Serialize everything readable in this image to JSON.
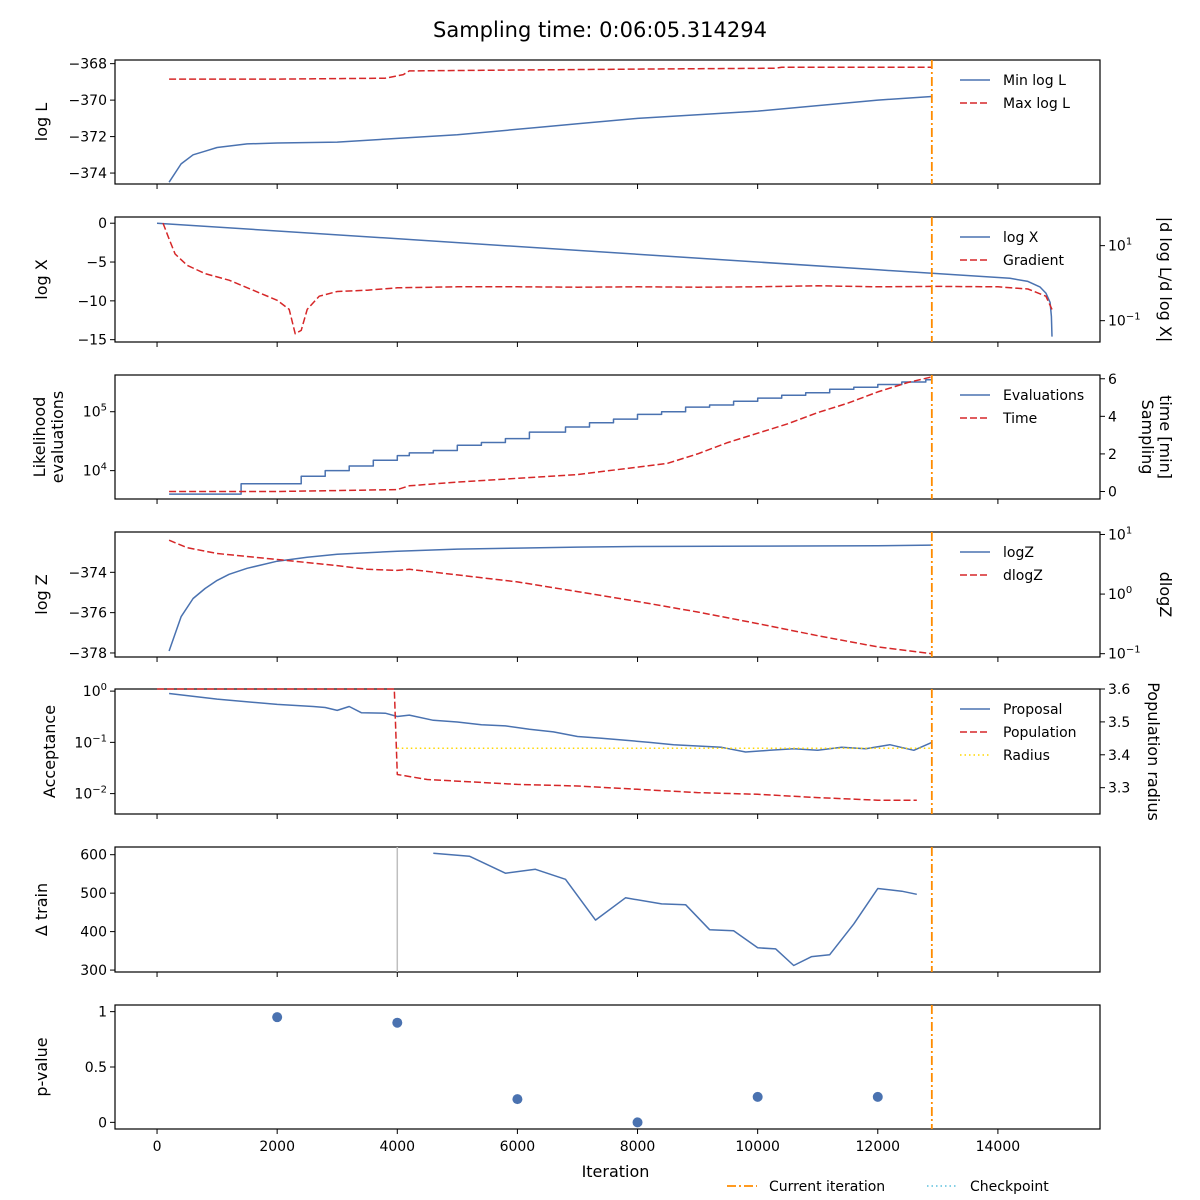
{
  "figure": {
    "suptitle": "Sampling time: 0:06:05.314294"
  },
  "colors": {
    "blue": "#4a72b0",
    "red": "#d62728",
    "orange": "#ff8c00",
    "yellow": "#ffd700",
    "cyan": "#5bc0de",
    "grey": "#bfbfbf"
  },
  "legend_bottom": [
    "Current iteration",
    "Checkpoint"
  ],
  "chart_data": [
    {
      "type": "line",
      "id": "logL",
      "ylabel": "log L",
      "ylim": [
        -374.6,
        -367.8
      ],
      "yticks": [
        -374,
        -372,
        -370,
        -368
      ],
      "current_iteration": 12900,
      "series": [
        {
          "name": "Min log L",
          "style": "solid",
          "color": "blue",
          "x": [
            200,
            400,
            600,
            800,
            1000,
            1500,
            2000,
            3000,
            4000,
            5000,
            6000,
            7000,
            8000,
            9000,
            10000,
            11000,
            12000,
            12900
          ],
          "y": [
            -374.5,
            -373.5,
            -373.0,
            -372.8,
            -372.6,
            -372.4,
            -372.35,
            -372.3,
            -372.1,
            -371.9,
            -371.6,
            -371.3,
            -371.0,
            -370.8,
            -370.6,
            -370.3,
            -370.0,
            -369.8
          ]
        },
        {
          "name": "Max log L",
          "style": "dashed",
          "color": "red",
          "x": [
            200,
            2000,
            3800,
            4100,
            4200,
            6000,
            8000,
            10300,
            10400,
            12900
          ],
          "y": [
            -368.85,
            -368.85,
            -368.8,
            -368.6,
            -368.4,
            -368.35,
            -368.3,
            -368.25,
            -368.2,
            -368.2
          ]
        }
      ],
      "legend": "upper right"
    },
    {
      "type": "line",
      "id": "logX",
      "ylabel": "log X",
      "ylim": [
        -15.3,
        0.8
      ],
      "yticks": [
        0,
        -5,
        -10,
        -15
      ],
      "y2label": "|d log L/d log X|",
      "y2log": true,
      "y2lim": [
        0.027,
        58
      ],
      "y2ticks": [
        "10^1",
        "10^-1"
      ],
      "current_iteration": 12900,
      "series": [
        {
          "name": "log X",
          "style": "solid",
          "color": "blue",
          "x": [
            0,
            12000,
            14200,
            14500,
            14700,
            14800,
            14870,
            14890,
            14900
          ],
          "y": [
            0.0,
            -6.0,
            -7.1,
            -7.5,
            -8.2,
            -9.0,
            -10.2,
            -12.0,
            -14.6
          ]
        },
        {
          "name": "Gradient",
          "style": "dashed",
          "color": "red",
          "axis": "right",
          "x": [
            100,
            200,
            300,
            500,
            800,
            1200,
            1600,
            2000,
            2200,
            2300,
            2400,
            2500,
            2700,
            3000,
            3500,
            4000,
            5000,
            6000,
            7000,
            8000,
            9000,
            10000,
            11000,
            12000,
            13000,
            14000,
            14500,
            14800,
            14900
          ],
          "y": [
            40,
            15,
            6.0,
            3.0,
            1.8,
            1.2,
            0.65,
            0.35,
            0.2,
            0.045,
            0.055,
            0.2,
            0.45,
            0.6,
            0.65,
            0.75,
            0.8,
            0.8,
            0.78,
            0.8,
            0.78,
            0.8,
            0.85,
            0.8,
            0.82,
            0.8,
            0.7,
            0.45,
            0.2
          ]
        }
      ],
      "legend": "upper right"
    },
    {
      "type": "line",
      "id": "evals",
      "ylabel": "Likelihood evaluations",
      "ylog": true,
      "ylim": [
        3300,
        420000
      ],
      "yticks": [
        "10^4",
        "10^5"
      ],
      "y2label": "Sampling time [min]",
      "y2lim": [
        -0.4,
        6.2
      ],
      "y2ticks": [
        0,
        2,
        4,
        6
      ],
      "current_iteration": 12900,
      "series": [
        {
          "name": "Evaluations",
          "style": "solid",
          "color": "blue",
          "step": true,
          "x": [
            200,
            1200,
            1400,
            2200,
            2400,
            2800,
            3200,
            3600,
            4000,
            4200,
            4600,
            5000,
            5400,
            5800,
            6200,
            6800,
            7200,
            7600,
            8000,
            8400,
            8800,
            9200,
            9600,
            10000,
            10400,
            10800,
            11200,
            11600,
            12000,
            12400,
            12800,
            12900
          ],
          "y": [
            4000,
            4000,
            6000,
            6000,
            8000,
            10000,
            12000,
            15000,
            18000,
            20000,
            22000,
            27000,
            30000,
            35000,
            45000,
            55000,
            65000,
            75000,
            90000,
            100000,
            120000,
            130000,
            150000,
            170000,
            190000,
            210000,
            240000,
            260000,
            290000,
            320000,
            350000,
            350000
          ]
        },
        {
          "name": "Time",
          "style": "dashed",
          "color": "red",
          "axis": "right",
          "x": [
            200,
            2000,
            4000,
            4200,
            5000,
            6000,
            7000,
            8000,
            8500,
            9000,
            9500,
            10000,
            10500,
            11000,
            11500,
            12000,
            12500,
            12900
          ],
          "y": [
            0.0,
            0.0,
            0.1,
            0.3,
            0.5,
            0.7,
            0.9,
            1.3,
            1.5,
            2.0,
            2.6,
            3.1,
            3.6,
            4.2,
            4.7,
            5.3,
            5.8,
            6.1
          ]
        }
      ],
      "legend": "upper right"
    },
    {
      "type": "line",
      "id": "logZ",
      "ylabel": "log Z",
      "ylim": [
        -378.2,
        -372.0
      ],
      "yticks": [
        -374,
        -376,
        -378
      ],
      "y2label": "dlogZ",
      "y2log": true,
      "y2lim": [
        0.088,
        11
      ],
      "y2ticks": [
        "10^1",
        "10^0",
        "10^-1"
      ],
      "current_iteration": 12900,
      "series": [
        {
          "name": "logZ",
          "style": "solid",
          "color": "blue",
          "x": [
            200,
            400,
            600,
            800,
            1000,
            1200,
            1500,
            2000,
            2500,
            3000,
            4000,
            5000,
            6000,
            7000,
            8000,
            10000,
            12000,
            12900
          ],
          "y": [
            -377.9,
            -376.2,
            -375.3,
            -374.8,
            -374.4,
            -374.1,
            -373.8,
            -373.45,
            -373.25,
            -373.1,
            -372.95,
            -372.85,
            -372.8,
            -372.75,
            -372.72,
            -372.7,
            -372.68,
            -372.65
          ]
        },
        {
          "name": "dlogZ",
          "style": "dashed",
          "color": "red",
          "axis": "right",
          "x": [
            200,
            500,
            1000,
            2000,
            3000,
            3500,
            4000,
            4200,
            5000,
            6000,
            7000,
            8000,
            9000,
            10000,
            11000,
            12000,
            12900
          ],
          "y": [
            8.0,
            6.0,
            4.8,
            3.8,
            3.0,
            2.6,
            2.5,
            2.6,
            2.1,
            1.6,
            1.1,
            0.75,
            0.5,
            0.32,
            0.2,
            0.13,
            0.1
          ]
        }
      ],
      "legend": "upper right"
    },
    {
      "type": "line",
      "id": "acceptance",
      "ylabel": "Acceptance",
      "ylog": true,
      "ylim": [
        0.004,
        1.1
      ],
      "yticks": [
        "10^0",
        "10^-1",
        "10^-2"
      ],
      "y2label": "Population radius",
      "y2lim": [
        3.22,
        3.6
      ],
      "y2ticks": [
        3.3,
        3.4,
        3.5,
        3.6
      ],
      "current_iteration": 12900,
      "series": [
        {
          "name": "Proposal",
          "style": "solid",
          "color": "blue",
          "x": [
            200,
            1000,
            2000,
            2600,
            2800,
            3000,
            3200,
            3400,
            3800,
            4000,
            4200,
            4600,
            5000,
            5400,
            5800,
            6200,
            6600,
            7000,
            7400,
            7800,
            8200,
            8600,
            9000,
            9400,
            9800,
            10200,
            10600,
            11000,
            11400,
            11800,
            12200,
            12600,
            12900
          ],
          "y": [
            0.9,
            0.7,
            0.55,
            0.5,
            0.48,
            0.42,
            0.5,
            0.38,
            0.37,
            0.32,
            0.34,
            0.27,
            0.25,
            0.22,
            0.21,
            0.18,
            0.16,
            0.13,
            0.12,
            0.11,
            0.1,
            0.09,
            0.085,
            0.08,
            0.065,
            0.07,
            0.075,
            0.07,
            0.08,
            0.075,
            0.09,
            0.07,
            0.1
          ]
        },
        {
          "name": "Population",
          "style": "dashed",
          "color": "red",
          "axis": "right",
          "x": [
            0,
            3950,
            4000,
            4500,
            6000,
            7000,
            8000,
            9000,
            10000,
            11000,
            12000,
            12650
          ],
          "y": [
            3.6,
            3.6,
            3.34,
            3.325,
            3.31,
            3.305,
            3.295,
            3.285,
            3.28,
            3.27,
            3.262,
            3.262
          ]
        },
        {
          "name": "Radius",
          "style": "dotted",
          "color": "yellow",
          "axis": "right",
          "x": [
            4000,
            12900
          ],
          "y": [
            3.42,
            3.42
          ]
        }
      ],
      "legend": "upper right"
    },
    {
      "type": "line",
      "id": "dtrain",
      "ylabel": "Δ train",
      "ylim": [
        295,
        620
      ],
      "yticks": [
        300,
        400,
        500,
        600
      ],
      "current_iteration": 12900,
      "checkpoint_marker": 4000,
      "series": [
        {
          "name": "",
          "style": "solid",
          "color": "blue",
          "x": [
            4600,
            5200,
            5800,
            6300,
            6800,
            7300,
            7800,
            8400,
            8800,
            9200,
            9600,
            10000,
            10300,
            10600,
            10900,
            11200,
            11600,
            12000,
            12400,
            12650
          ],
          "y": [
            604,
            596,
            552,
            562,
            536,
            430,
            488,
            472,
            470,
            405,
            402,
            358,
            355,
            312,
            335,
            340,
            420,
            512,
            505,
            497
          ]
        }
      ]
    },
    {
      "type": "scatter",
      "id": "pvalue",
      "ylabel": "p-value",
      "ylim": [
        -0.06,
        1.06
      ],
      "yticks": [
        0.0,
        0.5,
        1.0
      ],
      "xlabel": "Iteration",
      "xlim": [
        -700,
        15700
      ],
      "xticks": [
        0,
        2000,
        4000,
        6000,
        8000,
        10000,
        12000,
        14000
      ],
      "current_iteration": 12900,
      "points": {
        "x": [
          2000,
          4000,
          6000,
          8000,
          10000,
          12000
        ],
        "y": [
          0.95,
          0.9,
          0.21,
          0.0,
          0.23,
          0.23
        ]
      }
    }
  ]
}
